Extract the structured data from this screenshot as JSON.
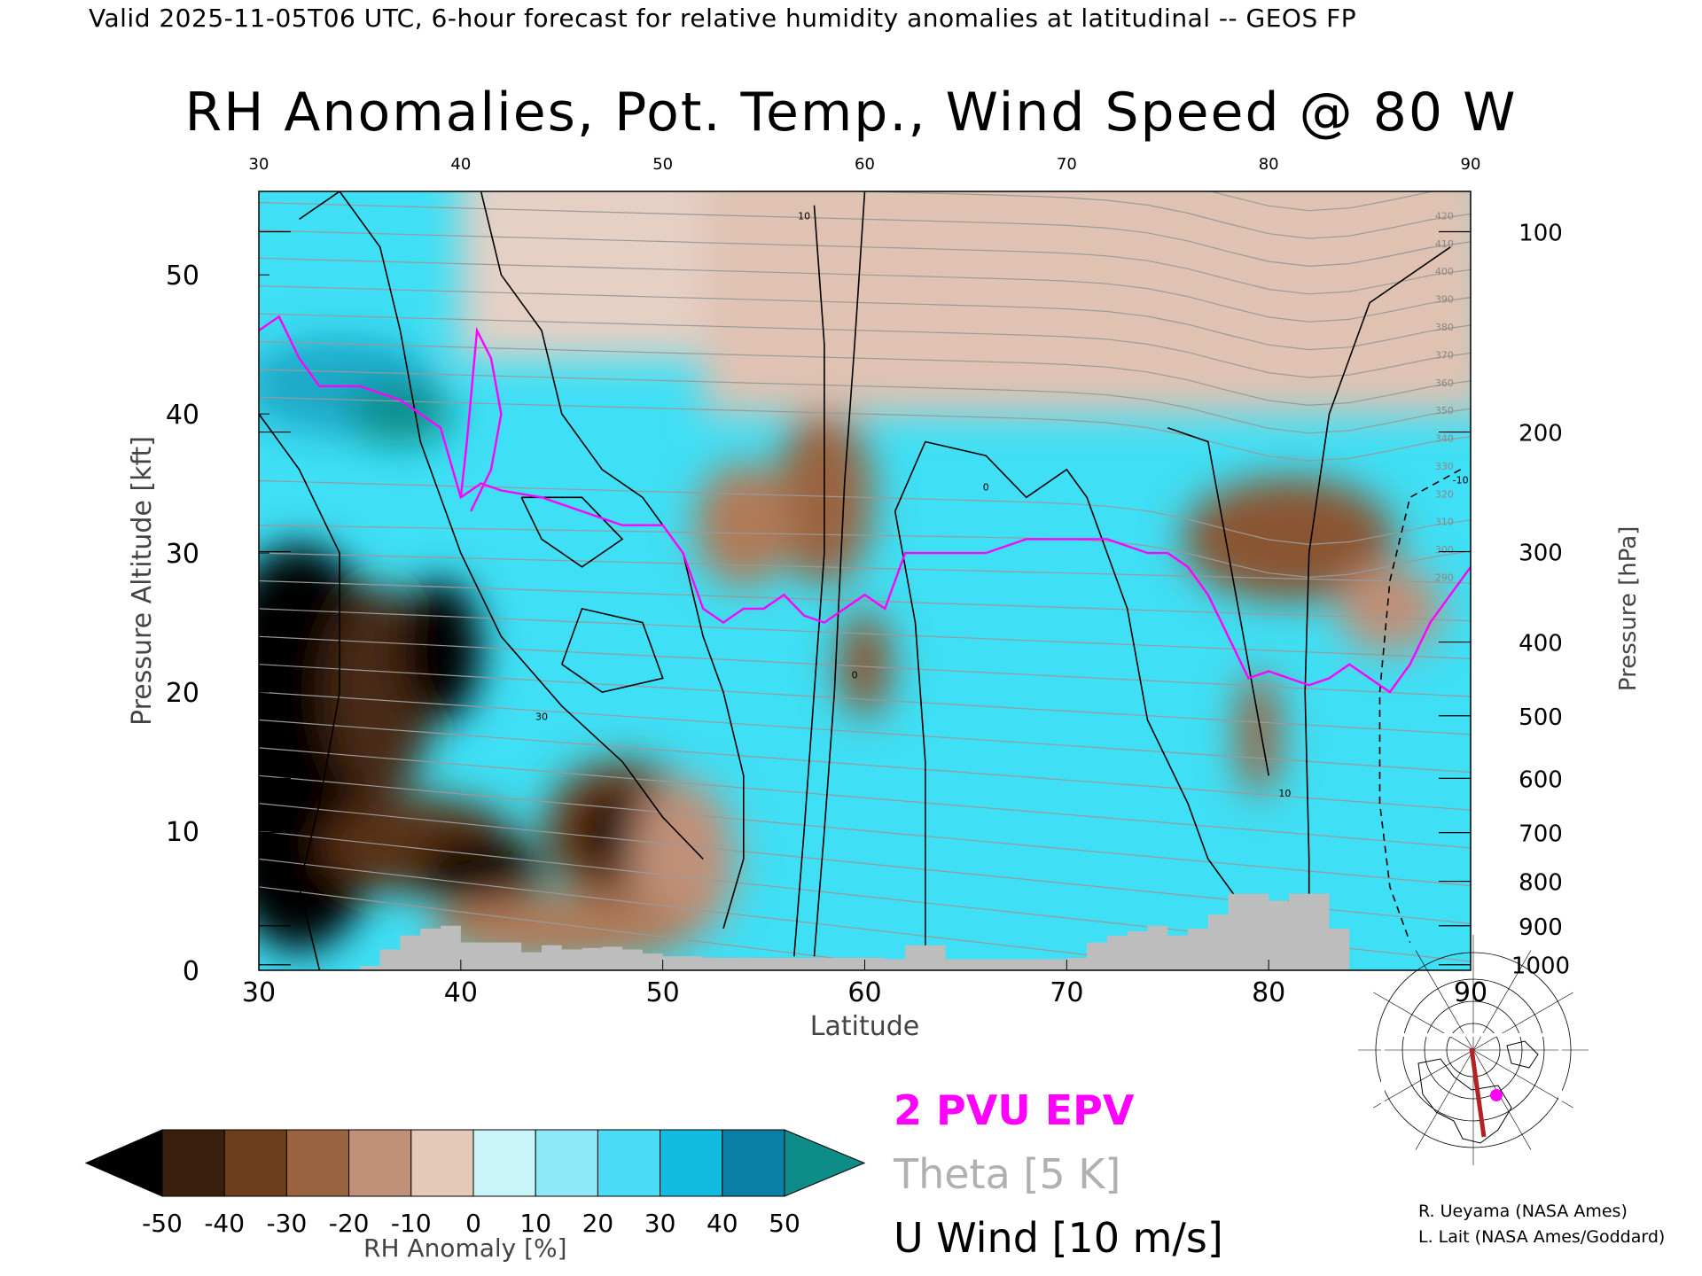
{
  "header": "Valid 2025-11-05T06 UTC, 6-hour forecast for relative humidity anomalies at latitudinal -- GEOS FP",
  "chart_data": {
    "type": "heatmap",
    "title": "RH Anomalies, Pot. Temp., Wind Speed @ 80 W",
    "xlabel": "Latitude",
    "ylabel": "Pressure Altitude [kft]",
    "y2label": "Pressure [hPa]",
    "xlim": [
      30,
      90
    ],
    "ylim": [
      0,
      56
    ],
    "x_ticks": [
      30,
      40,
      50,
      60,
      70,
      80,
      90
    ],
    "top_x_ticks": [
      30,
      40,
      50,
      60,
      70,
      80,
      90
    ],
    "y_ticks": [
      0,
      10,
      20,
      30,
      40,
      50
    ],
    "pressure_ticks": [
      {
        "label": "100",
        "kft": 53.1
      },
      {
        "label": "200",
        "kft": 38.7
      },
      {
        "label": "300",
        "kft": 30.1
      },
      {
        "label": "400",
        "kft": 23.6
      },
      {
        "label": "500",
        "kft": 18.3
      },
      {
        "label": "600",
        "kft": 13.8
      },
      {
        "label": "700",
        "kft": 9.9
      },
      {
        "label": "800",
        "kft": 6.4
      },
      {
        "label": "900",
        "kft": 3.2
      },
      {
        "label": "1000",
        "kft": 0.4
      }
    ],
    "colorbar": {
      "label": "RH Anomaly [%]",
      "ticks": [
        "-50",
        "-40",
        "-30",
        "-20",
        "-10",
        "0",
        "10",
        "20",
        "30",
        "40",
        "50"
      ],
      "colors": [
        "#000000",
        "#3a1f0c",
        "#6e3d1c",
        "#9a6340",
        "#c09078",
        "#e4c8b8",
        "#c8f4fa",
        "#8ee8f8",
        "#4adcf4",
        "#12bce0",
        "#0a7fa6",
        "#0e8c88"
      ]
    },
    "epv_2pvu_line": [
      [
        30,
        46
      ],
      [
        31,
        47
      ],
      [
        32,
        44
      ],
      [
        33,
        42
      ],
      [
        35,
        42
      ],
      [
        37,
        41
      ],
      [
        39,
        39
      ],
      [
        40,
        34
      ],
      [
        41,
        35
      ],
      [
        42,
        34.5
      ],
      [
        44,
        34
      ],
      [
        46,
        33
      ],
      [
        48,
        32
      ],
      [
        50,
        32
      ],
      [
        51,
        30
      ],
      [
        52,
        26
      ],
      [
        53,
        25
      ],
      [
        54,
        26
      ],
      [
        55,
        26
      ],
      [
        56,
        27
      ],
      [
        57,
        25.5
      ],
      [
        58,
        25
      ],
      [
        60,
        27
      ],
      [
        61,
        26
      ],
      [
        62,
        30
      ],
      [
        64,
        30
      ],
      [
        66,
        30
      ],
      [
        68,
        31
      ],
      [
        70,
        31
      ],
      [
        72,
        31
      ],
      [
        74,
        30
      ],
      [
        75,
        30
      ],
      [
        76,
        29
      ],
      [
        77,
        27
      ],
      [
        78,
        24
      ],
      [
        79,
        21
      ],
      [
        80,
        21.5
      ],
      [
        82,
        20.5
      ],
      [
        83,
        21
      ],
      [
        84,
        22
      ],
      [
        85,
        21
      ],
      [
        86,
        20
      ],
      [
        87,
        22
      ],
      [
        88,
        25
      ],
      [
        89,
        27
      ],
      [
        90,
        29
      ]
    ],
    "theta_labels": [
      "290",
      "300",
      "310",
      "320",
      "330",
      "340",
      "350",
      "360",
      "370",
      "380",
      "390",
      "400",
      "410",
      "420"
    ],
    "wind_contour_labels": [
      "10",
      "0",
      "30",
      "-10"
    ],
    "terrain_kft": [
      [
        30,
        0
      ],
      [
        34,
        0
      ],
      [
        35,
        0.3
      ],
      [
        36,
        1.5
      ],
      [
        37,
        2.5
      ],
      [
        38,
        3
      ],
      [
        39,
        3.2
      ],
      [
        40,
        2
      ],
      [
        42,
        2
      ],
      [
        43,
        1.3
      ],
      [
        44,
        1.8
      ],
      [
        45,
        1.5
      ],
      [
        46,
        1.6
      ],
      [
        47,
        1.7
      ],
      [
        48,
        1.5
      ],
      [
        49,
        1.2
      ],
      [
        50,
        1
      ],
      [
        52,
        0.9
      ],
      [
        55,
        0.9
      ],
      [
        57,
        0.9
      ],
      [
        58,
        0.9
      ],
      [
        61,
        0.8
      ],
      [
        62,
        1.8
      ],
      [
        64,
        0.8
      ],
      [
        70,
        0.9
      ],
      [
        71,
        2
      ],
      [
        72,
        2.5
      ],
      [
        73,
        2.8
      ],
      [
        74,
        3.2
      ],
      [
        75,
        2.5
      ],
      [
        76,
        3
      ],
      [
        77,
        4
      ],
      [
        78,
        5.5
      ],
      [
        80,
        5
      ],
      [
        81,
        5.5
      ],
      [
        82,
        5.5
      ],
      [
        83,
        3
      ],
      [
        84,
        0
      ],
      [
        90,
        0
      ]
    ]
  },
  "legend": {
    "epv": "2 PVU EPV",
    "theta": "Theta [5 K]",
    "wind": "U Wind [10 m/s]"
  },
  "credits": [
    "R. Ueyama (NASA Ames)",
    "L. Lait (NASA Ames/Goddard)"
  ],
  "colors": {
    "epv": "#ff00ff",
    "theta": "#9a9a9a",
    "terrain": "#bdbdbd",
    "section_line": "#b22222",
    "location_marker": "#ff00ff"
  }
}
